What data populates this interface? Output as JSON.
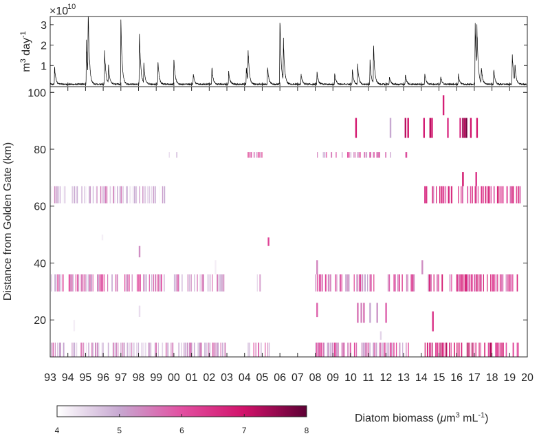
{
  "chart_data": [
    {
      "type": "line",
      "panel": "top",
      "title": "",
      "xlabel": "",
      "ylabel_base": "m",
      "ylabel_sup1": "3",
      "ylabel_mid": " day",
      "ylabel_sup2": "-1",
      "exponent_prefix": "×10",
      "exponent_power": "10",
      "ylim": [
        0,
        3.4
      ],
      "yticks": [
        "1",
        "2",
        "3"
      ],
      "ytick_values": [
        1,
        2,
        3
      ],
      "xlim": [
        1993,
        2020
      ],
      "color": "#000000",
      "peaks": [
        {
          "x": 1993.25,
          "y": 0.9
        },
        {
          "x": 1995.05,
          "y": 2.2
        },
        {
          "x": 1995.15,
          "y": 3.3
        },
        {
          "x": 1996.08,
          "y": 1.8
        },
        {
          "x": 1996.3,
          "y": 0.9
        },
        {
          "x": 1997.0,
          "y": 3.45
        },
        {
          "x": 1998.05,
          "y": 2.8
        },
        {
          "x": 1998.3,
          "y": 1.0
        },
        {
          "x": 1999.1,
          "y": 1.2
        },
        {
          "x": 2000.0,
          "y": 1.4
        },
        {
          "x": 2001.1,
          "y": 0.5
        },
        {
          "x": 2002.15,
          "y": 0.9
        },
        {
          "x": 2003.1,
          "y": 0.7
        },
        {
          "x": 2004.1,
          "y": 0.9
        },
        {
          "x": 2004.2,
          "y": 1.6
        },
        {
          "x": 2005.3,
          "y": 0.9
        },
        {
          "x": 2006.0,
          "y": 3.5
        },
        {
          "x": 2006.2,
          "y": 2.1
        },
        {
          "x": 2007.2,
          "y": 0.5
        },
        {
          "x": 2008.1,
          "y": 0.6
        },
        {
          "x": 2009.1,
          "y": 0.6
        },
        {
          "x": 2010.1,
          "y": 0.8
        },
        {
          "x": 2010.4,
          "y": 1.0
        },
        {
          "x": 2011.1,
          "y": 1.2
        },
        {
          "x": 2011.3,
          "y": 2.0
        },
        {
          "x": 2012.2,
          "y": 0.4
        },
        {
          "x": 2013.1,
          "y": 0.5
        },
        {
          "x": 2014.2,
          "y": 0.6
        },
        {
          "x": 2015.1,
          "y": 0.4
        },
        {
          "x": 2016.1,
          "y": 0.5
        },
        {
          "x": 2017.05,
          "y": 3.3
        },
        {
          "x": 2017.15,
          "y": 2.3
        },
        {
          "x": 2017.4,
          "y": 0.8
        },
        {
          "x": 2018.1,
          "y": 0.8
        },
        {
          "x": 2019.15,
          "y": 1.6
        },
        {
          "x": 2019.3,
          "y": 0.9
        }
      ]
    },
    {
      "type": "heatmap",
      "panel": "main",
      "title": "",
      "xlabel": "",
      "ylabel": "Distance from Golden Gate  (km)",
      "xlim": [
        1993,
        2020
      ],
      "ylim": [
        7,
        102
      ],
      "x_ticks": [
        "93",
        "94",
        "95",
        "96",
        "97",
        "98",
        "99",
        "00",
        "01",
        "02",
        "03",
        "04",
        "05",
        "06",
        "07",
        "08",
        "09",
        "10",
        "11",
        "12",
        "13",
        "14",
        "15",
        "16",
        "17",
        "18",
        "19",
        "20"
      ],
      "y_ticks": [
        "20",
        "40",
        "60",
        "80",
        "100"
      ],
      "y_tick_values": [
        20,
        40,
        60,
        80,
        100
      ],
      "colorbar": {
        "label_prefix": "Diatom biomass (",
        "label_mu": "μ",
        "label_m": "m",
        "label_sup1": "3",
        "label_ml": " mL",
        "label_sup2": "-1",
        "label_suffix": ")",
        "range": [
          4,
          8
        ],
        "ticks": [
          "4",
          "5",
          "6",
          "7",
          "8"
        ],
        "tick_values": [
          4,
          5,
          6,
          7,
          8
        ],
        "colors": [
          "#ffffff",
          "#c7a8d1",
          "#e24fa1",
          "#d1126a",
          "#5e0135"
        ]
      },
      "stations": [
        {
          "y": [
            7,
            12
          ],
          "regions": [
            [
              1993.05,
              1999.0,
              4.8
            ],
            [
              1999.1,
              2002.95,
              5.0
            ],
            [
              2004.1,
              2005.5,
              5.3
            ],
            [
              2008.0,
              2013.5,
              5.3
            ],
            [
              2014.1,
              2019.6,
              6.5
            ]
          ]
        },
        {
          "y": [
            30,
            36
          ],
          "regions": [
            [
              1993.05,
              1999.5,
              5.3
            ],
            [
              2000.0,
              2002.9,
              5.0
            ],
            [
              2004.7,
              2005.1,
              4.8
            ],
            [
              2008.0,
              2011.3,
              5.4
            ],
            [
              2012.1,
              2013.6,
              5.7
            ],
            [
              2014.2,
              2019.6,
              6.0
            ]
          ]
        },
        {
          "y": [
            61,
            67
          ],
          "regions": [
            [
              1993.05,
              1999.5,
              4.7
            ],
            [
              2014.1,
              2019.6,
              6.1
            ]
          ]
        },
        {
          "y": [
            77,
            79
          ],
          "regions": [
            [
              1999.6,
              2000.2,
              4.4
            ],
            [
              2004.1,
              2005.1,
              5.5
            ],
            [
              2008.1,
              2012.3,
              5.4
            ],
            [
              2012.9,
              2013.2,
              6.0
            ]
          ]
        }
      ],
      "isolated": [
        {
          "x": 1995.95,
          "y": [
            48,
            50
          ],
          "v": 4.2
        },
        {
          "x": 1998.05,
          "y": [
            42,
            46
          ],
          "v": 5.3
        },
        {
          "x": 1998.05,
          "y": [
            21,
            25
          ],
          "v": 4.4
        },
        {
          "x": 1994.35,
          "y": [
            16,
            20
          ],
          "v": 4.2
        },
        {
          "x": 2002.35,
          "y": [
            36,
            41
          ],
          "v": 4.2
        },
        {
          "x": 2005.35,
          "y": [
            46,
            49
          ],
          "v": 6.2
        },
        {
          "x": 2008.1,
          "y": [
            36,
            41
          ],
          "v": 5.4
        },
        {
          "x": 2008.1,
          "y": [
            21,
            26
          ],
          "v": 5.8
        },
        {
          "x": 2010.4,
          "y": [
            19,
            26
          ],
          "v": 5.6
        },
        {
          "x": 2010.6,
          "y": [
            19,
            26
          ],
          "v": 5.4
        },
        {
          "x": 2010.75,
          "y": [
            19,
            26
          ],
          "v": 5.6
        },
        {
          "x": 2011.1,
          "y": [
            19,
            26
          ],
          "v": 5.0
        },
        {
          "x": 2011.5,
          "y": [
            19,
            26
          ],
          "v": 5.2
        },
        {
          "x": 2012.0,
          "y": [
            19,
            26
          ],
          "v": 5.8
        },
        {
          "x": 2011.7,
          "y": [
            13,
            16
          ],
          "v": 4.5
        },
        {
          "x": 2014.05,
          "y": [
            36,
            41
          ],
          "v": 5.3
        },
        {
          "x": 2014.65,
          "y": [
            16,
            23
          ],
          "v": 6.5
        },
        {
          "x": 2015.25,
          "y": [
            92,
            99
          ],
          "v": 6.8
        },
        {
          "x": 2016.35,
          "y": [
            67,
            72
          ],
          "v": 7.0
        },
        {
          "x": 2017.1,
          "y": [
            67,
            72
          ],
          "v": 6.5
        },
        {
          "x": 2010.3,
          "y": [
            84,
            91
          ],
          "v": 6.9
        },
        {
          "x": 2012.25,
          "y": [
            84,
            91
          ],
          "v": 5.0
        },
        {
          "x": 2013.1,
          "y": [
            84,
            91
          ],
          "v": 7.2
        },
        {
          "x": 2013.25,
          "y": [
            84,
            91
          ],
          "v": 7.0
        },
        {
          "x": 2014.15,
          "y": [
            84,
            91
          ],
          "v": 6.8
        },
        {
          "x": 2014.5,
          "y": [
            84,
            91
          ],
          "v": 7.2
        },
        {
          "x": 2014.6,
          "y": [
            84,
            91
          ],
          "v": 6.9
        },
        {
          "x": 2015.5,
          "y": [
            84,
            91
          ],
          "v": 6.5
        },
        {
          "x": 2016.2,
          "y": [
            84,
            91
          ],
          "v": 6.5
        },
        {
          "x": 2016.35,
          "y": [
            84,
            91
          ],
          "v": 7.5
        },
        {
          "x": 2016.45,
          "y": [
            84,
            91
          ],
          "v": 7.2
        },
        {
          "x": 2016.55,
          "y": [
            84,
            91
          ],
          "v": 7.8
        },
        {
          "x": 2016.8,
          "y": [
            84,
            91
          ],
          "v": 7.0
        },
        {
          "x": 2017.15,
          "y": [
            84,
            91
          ],
          "v": 6.9
        }
      ]
    }
  ]
}
